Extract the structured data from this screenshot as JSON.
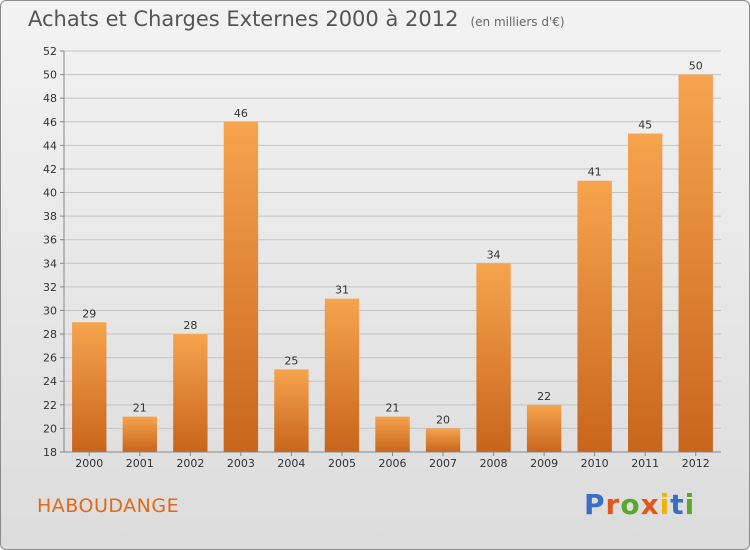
{
  "header": {
    "title": "Achats et Charges Externes 2000 à 2012",
    "subtitle": "(en milliers d'€)"
  },
  "footer": {
    "town": "HABOUDANGE",
    "brand": "Proxiti",
    "brand_colors": [
      "#3b6fc4",
      "#e0561c",
      "#5aa82f",
      "#e0561c",
      "#f0b400",
      "#3b6fc4",
      "#5aa82f"
    ]
  },
  "chart_data": {
    "type": "bar",
    "title": "Achats et Charges Externes 2000 à 2012",
    "subtitle": "(en milliers d'€)",
    "xlabel": "",
    "ylabel": "",
    "categories": [
      "2000",
      "2001",
      "2002",
      "2003",
      "2004",
      "2005",
      "2006",
      "2007",
      "2008",
      "2009",
      "2010",
      "2011",
      "2012"
    ],
    "values": [
      29,
      21,
      28,
      46,
      25,
      31,
      21,
      20,
      34,
      22,
      41,
      45,
      50
    ],
    "ylim": [
      18,
      52
    ],
    "yticks": [
      18,
      20,
      22,
      24,
      26,
      28,
      30,
      32,
      34,
      36,
      38,
      40,
      42,
      44,
      46,
      48,
      50,
      52
    ],
    "grid": "horizontal",
    "bar_color_light": "#f6a44e",
    "bar_color_dark": "#c8651c",
    "grid_color": "#c4c4c4",
    "axis_color": "#888888"
  }
}
